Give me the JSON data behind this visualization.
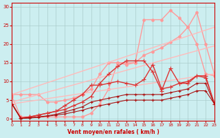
{
  "xlabel": "Vent moyen/en rafales ( km/h )",
  "xlim": [
    0,
    23
  ],
  "ylim": [
    -0.5,
    31
  ],
  "yticks": [
    0,
    5,
    10,
    15,
    20,
    25,
    30
  ],
  "xticks": [
    0,
    1,
    2,
    3,
    4,
    5,
    6,
    7,
    8,
    9,
    10,
    11,
    12,
    13,
    14,
    15,
    16,
    17,
    18,
    19,
    20,
    21,
    22,
    23
  ],
  "bg_color": "#cceef0",
  "grid_color": "#aacccc",
  "lines": [
    {
      "x": [
        0,
        1,
        2,
        3,
        4,
        5,
        6,
        7,
        8,
        9,
        10,
        11,
        12,
        13,
        14,
        15,
        16,
        17,
        18,
        19,
        20,
        21,
        22,
        23
      ],
      "y": [
        6.0,
        0.5,
        0.5,
        0.5,
        0.5,
        0.5,
        0.5,
        0.5,
        0.5,
        1.5,
        4.0,
        8.0,
        15.0,
        15.0,
        15.0,
        26.5,
        26.5,
        26.5,
        29.0,
        27.0,
        24.5,
        28.5,
        20.0,
        12.0
      ],
      "color": "#ff9999",
      "marker": "o",
      "markersize": 2.5,
      "linewidth": 1.0
    },
    {
      "x": [
        0,
        1,
        2,
        3,
        4,
        5,
        6,
        7,
        8,
        9,
        10,
        11,
        12,
        13,
        14,
        15,
        16,
        17,
        18,
        19,
        20,
        21,
        22,
        23
      ],
      "y": [
        6.5,
        6.5,
        6.5,
        6.5,
        4.5,
        4.5,
        5.0,
        5.5,
        6.5,
        8.0,
        12.0,
        15.0,
        15.0,
        14.5,
        15.0,
        17.0,
        18.0,
        19.0,
        20.5,
        22.0,
        24.5,
        20.0,
        12.0,
        11.5
      ],
      "color": "#ff9999",
      "marker": "o",
      "markersize": 2.5,
      "linewidth": 1.0
    },
    {
      "x": [
        0,
        23
      ],
      "y": [
        6.5,
        24.5
      ],
      "color": "#ffbbbb",
      "marker": "none",
      "markersize": 0,
      "linewidth": 1.0
    },
    {
      "x": [
        0,
        23
      ],
      "y": [
        4.5,
        19.5
      ],
      "color": "#ffbbbb",
      "marker": "none",
      "markersize": 0,
      "linewidth": 1.0
    },
    {
      "x": [
        0,
        23
      ],
      "y": [
        4.0,
        12.0
      ],
      "color": "#ffbbbb",
      "marker": "none",
      "markersize": 0,
      "linewidth": 1.0
    },
    {
      "x": [
        0,
        1,
        2,
        3,
        4,
        5,
        6,
        7,
        8,
        9,
        10,
        11,
        12,
        13,
        14,
        15,
        16,
        17,
        18,
        19,
        20,
        21,
        22,
        23
      ],
      "y": [
        4.0,
        0.2,
        0.5,
        1.0,
        1.5,
        2.0,
        2.5,
        3.5,
        4.5,
        6.0,
        9.5,
        12.0,
        14.0,
        15.5,
        15.5,
        15.5,
        12.5,
        7.5,
        13.5,
        9.5,
        9.5,
        11.5,
        11.5,
        4.0
      ],
      "color": "#dd3333",
      "marker": "+",
      "markersize": 4,
      "linewidth": 1.0
    },
    {
      "x": [
        0,
        1,
        2,
        3,
        4,
        5,
        6,
        7,
        8,
        9,
        10,
        11,
        12,
        13,
        14,
        15,
        16,
        17,
        18,
        19,
        20,
        21,
        22,
        23
      ],
      "y": [
        4.0,
        0.2,
        0.5,
        1.0,
        1.5,
        2.0,
        3.5,
        5.0,
        6.5,
        9.0,
        9.0,
        9.5,
        10.0,
        9.5,
        9.0,
        10.5,
        14.5,
        8.0,
        8.5,
        9.5,
        10.0,
        11.5,
        11.0,
        4.0
      ],
      "color": "#dd3333",
      "marker": "+",
      "markersize": 4,
      "linewidth": 1.0
    },
    {
      "x": [
        0,
        1,
        2,
        3,
        4,
        5,
        6,
        7,
        8,
        9,
        10,
        11,
        12,
        13,
        14,
        15,
        16,
        17,
        18,
        19,
        20,
        21,
        22,
        23
      ],
      "y": [
        4.0,
        0.1,
        0.3,
        0.5,
        0.8,
        1.2,
        1.8,
        2.5,
        3.2,
        4.5,
        5.0,
        5.5,
        6.0,
        6.5,
        6.5,
        6.5,
        6.5,
        6.5,
        7.0,
        7.5,
        8.0,
        9.5,
        9.5,
        4.0
      ],
      "color": "#aa1111",
      "marker": "+",
      "markersize": 3,
      "linewidth": 0.8
    },
    {
      "x": [
        0,
        1,
        2,
        3,
        4,
        5,
        6,
        7,
        8,
        9,
        10,
        11,
        12,
        13,
        14,
        15,
        16,
        17,
        18,
        19,
        20,
        21,
        22,
        23
      ],
      "y": [
        4.0,
        0.1,
        0.2,
        0.4,
        0.7,
        1.0,
        1.3,
        1.8,
        2.3,
        3.0,
        3.5,
        4.0,
        4.5,
        5.0,
        5.0,
        5.0,
        5.0,
        5.0,
        5.5,
        6.0,
        6.5,
        7.5,
        7.5,
        4.0
      ],
      "color": "#aa1111",
      "marker": "+",
      "markersize": 3,
      "linewidth": 0.8
    }
  ]
}
